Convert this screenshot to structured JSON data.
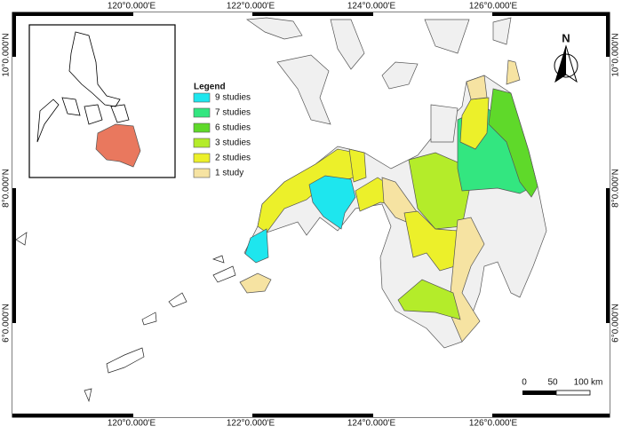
{
  "map": {
    "top_labels": [
      "120°0.000'E",
      "122°0.000'E",
      "124°0.000'E",
      "126°0.000'E"
    ],
    "bottom_labels": [
      "120°0.000'E",
      "122°0.000'E",
      "124°0.000'E",
      "126°0.000'E"
    ],
    "left_labels": [
      "10°0.000'N",
      "8°0.000'N",
      "6°0.000'N"
    ],
    "right_labels": [
      "10°0.000'N",
      "8°0.000'N",
      "6°0.000'N"
    ],
    "legend": {
      "title": "Legend",
      "items": [
        {
          "label": "9 studies",
          "color": "#1ee6ee"
        },
        {
          "label": "7 studies",
          "color": "#33e680"
        },
        {
          "label": "6 studies",
          "color": "#5fd92a"
        },
        {
          "label": "3 studies",
          "color": "#b4ec2a"
        },
        {
          "label": "2 studies",
          "color": "#ecf02a"
        },
        {
          "label": "1 study",
          "color": "#f6e3a2"
        }
      ]
    },
    "north": "N",
    "scale": [
      "0",
      "50",
      "100 km"
    ]
  }
}
